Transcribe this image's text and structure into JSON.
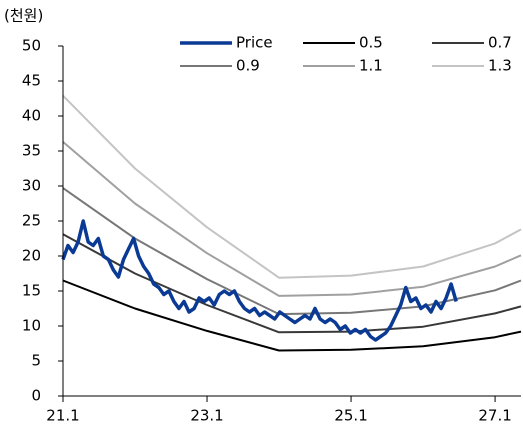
{
  "chart_data": {
    "type": "line",
    "y_unit_label": "(천원)",
    "xlim": [
      2021,
      2027.36
    ],
    "ylim": [
      0,
      50
    ],
    "xticks": [
      {
        "value": 2021,
        "label": "21.1"
      },
      {
        "value": 2023,
        "label": "23.1"
      },
      {
        "value": 2025,
        "label": "25.1"
      },
      {
        "value": 2027,
        "label": "27.1"
      }
    ],
    "yticks": [
      0,
      5,
      10,
      15,
      20,
      25,
      30,
      35,
      40,
      45,
      50
    ],
    "legend": "top",
    "series": [
      {
        "name": "Price",
        "color": "#0a3a94",
        "width": 3.5,
        "x": [
          2021.0,
          2021.07,
          2021.14,
          2021.21,
          2021.28,
          2021.35,
          2021.42,
          2021.49,
          2021.56,
          2021.63,
          2021.7,
          2021.77,
          2021.84,
          2021.91,
          2021.98,
          2022.05,
          2022.12,
          2022.19,
          2022.26,
          2022.33,
          2022.4,
          2022.47,
          2022.54,
          2022.61,
          2022.68,
          2022.75,
          2022.82,
          2022.89,
          2022.96,
          2023.03,
          2023.1,
          2023.17,
          2023.24,
          2023.31,
          2023.38,
          2023.45,
          2023.52,
          2023.59,
          2023.66,
          2023.73,
          2023.8,
          2023.87,
          2023.94,
          2024.01,
          2024.08,
          2024.15,
          2024.22,
          2024.29,
          2024.36,
          2024.43,
          2024.5,
          2024.57,
          2024.64,
          2024.71,
          2024.78,
          2024.85,
          2024.92,
          2024.99,
          2025.06,
          2025.13,
          2025.2,
          2025.27,
          2025.34,
          2025.41,
          2025.48,
          2025.55,
          2025.62,
          2025.69,
          2025.76,
          2025.83,
          2025.9,
          2025.97,
          2026.04,
          2026.11,
          2026.18,
          2026.25,
          2026.32,
          2026.39,
          2026.46
        ],
        "values": [
          19.5,
          21.5,
          20.5,
          22,
          25,
          22,
          21.5,
          22.5,
          20,
          19.5,
          18,
          17,
          19.5,
          21,
          22.5,
          20,
          18.5,
          17.5,
          16,
          15.5,
          14.5,
          15,
          13.5,
          12.5,
          13.5,
          12,
          12.5,
          14,
          13.5,
          14,
          13,
          14.5,
          15,
          14.5,
          15,
          13.5,
          12.5,
          12,
          12.5,
          11.5,
          12,
          11.5,
          11,
          12,
          11.5,
          11,
          10.5,
          11,
          11.5,
          11,
          12.5,
          11,
          10.5,
          11,
          10.5,
          9.5,
          10,
          9,
          9.5,
          9,
          9.5,
          8.5,
          8,
          8.5,
          9,
          10,
          11.5,
          13,
          15.5,
          13.5,
          14,
          12.5,
          13,
          12,
          13.5,
          12.5,
          14,
          16,
          13.5
        ]
      },
      {
        "name": "0.5",
        "color": "#000000",
        "width": 2,
        "x": [
          2021,
          2022,
          2023,
          2024,
          2025,
          2026,
          2027,
          2027.36
        ],
        "values": [
          16.5,
          12.5,
          9.3,
          6.5,
          6.6,
          7.1,
          8.4,
          9.2
        ]
      },
      {
        "name": "0.7",
        "color": "#383838",
        "width": 2,
        "x": [
          2021,
          2022,
          2023,
          2024,
          2025,
          2026,
          2027,
          2027.36
        ],
        "values": [
          23.1,
          17.5,
          13.0,
          9.1,
          9.2,
          9.9,
          11.8,
          12.8
        ]
      },
      {
        "name": "0.9",
        "color": "#777777",
        "width": 2,
        "x": [
          2021,
          2022,
          2023,
          2024,
          2025,
          2026,
          2027,
          2027.36
        ],
        "values": [
          29.7,
          22.5,
          16.7,
          11.7,
          11.9,
          12.8,
          15.1,
          16.5
        ]
      },
      {
        "name": "1.1",
        "color": "#a0a0a0",
        "width": 2,
        "x": [
          2021,
          2022,
          2023,
          2024,
          2025,
          2026,
          2027,
          2027.36
        ],
        "values": [
          36.3,
          27.5,
          20.4,
          14.3,
          14.5,
          15.6,
          18.5,
          20.1
        ]
      },
      {
        "name": "1.3",
        "color": "#c4c4c4",
        "width": 2,
        "x": [
          2021,
          2022,
          2023,
          2024,
          2025,
          2026,
          2027,
          2027.36
        ],
        "values": [
          42.9,
          32.5,
          24.1,
          16.9,
          17.2,
          18.5,
          21.8,
          23.8
        ]
      }
    ]
  }
}
